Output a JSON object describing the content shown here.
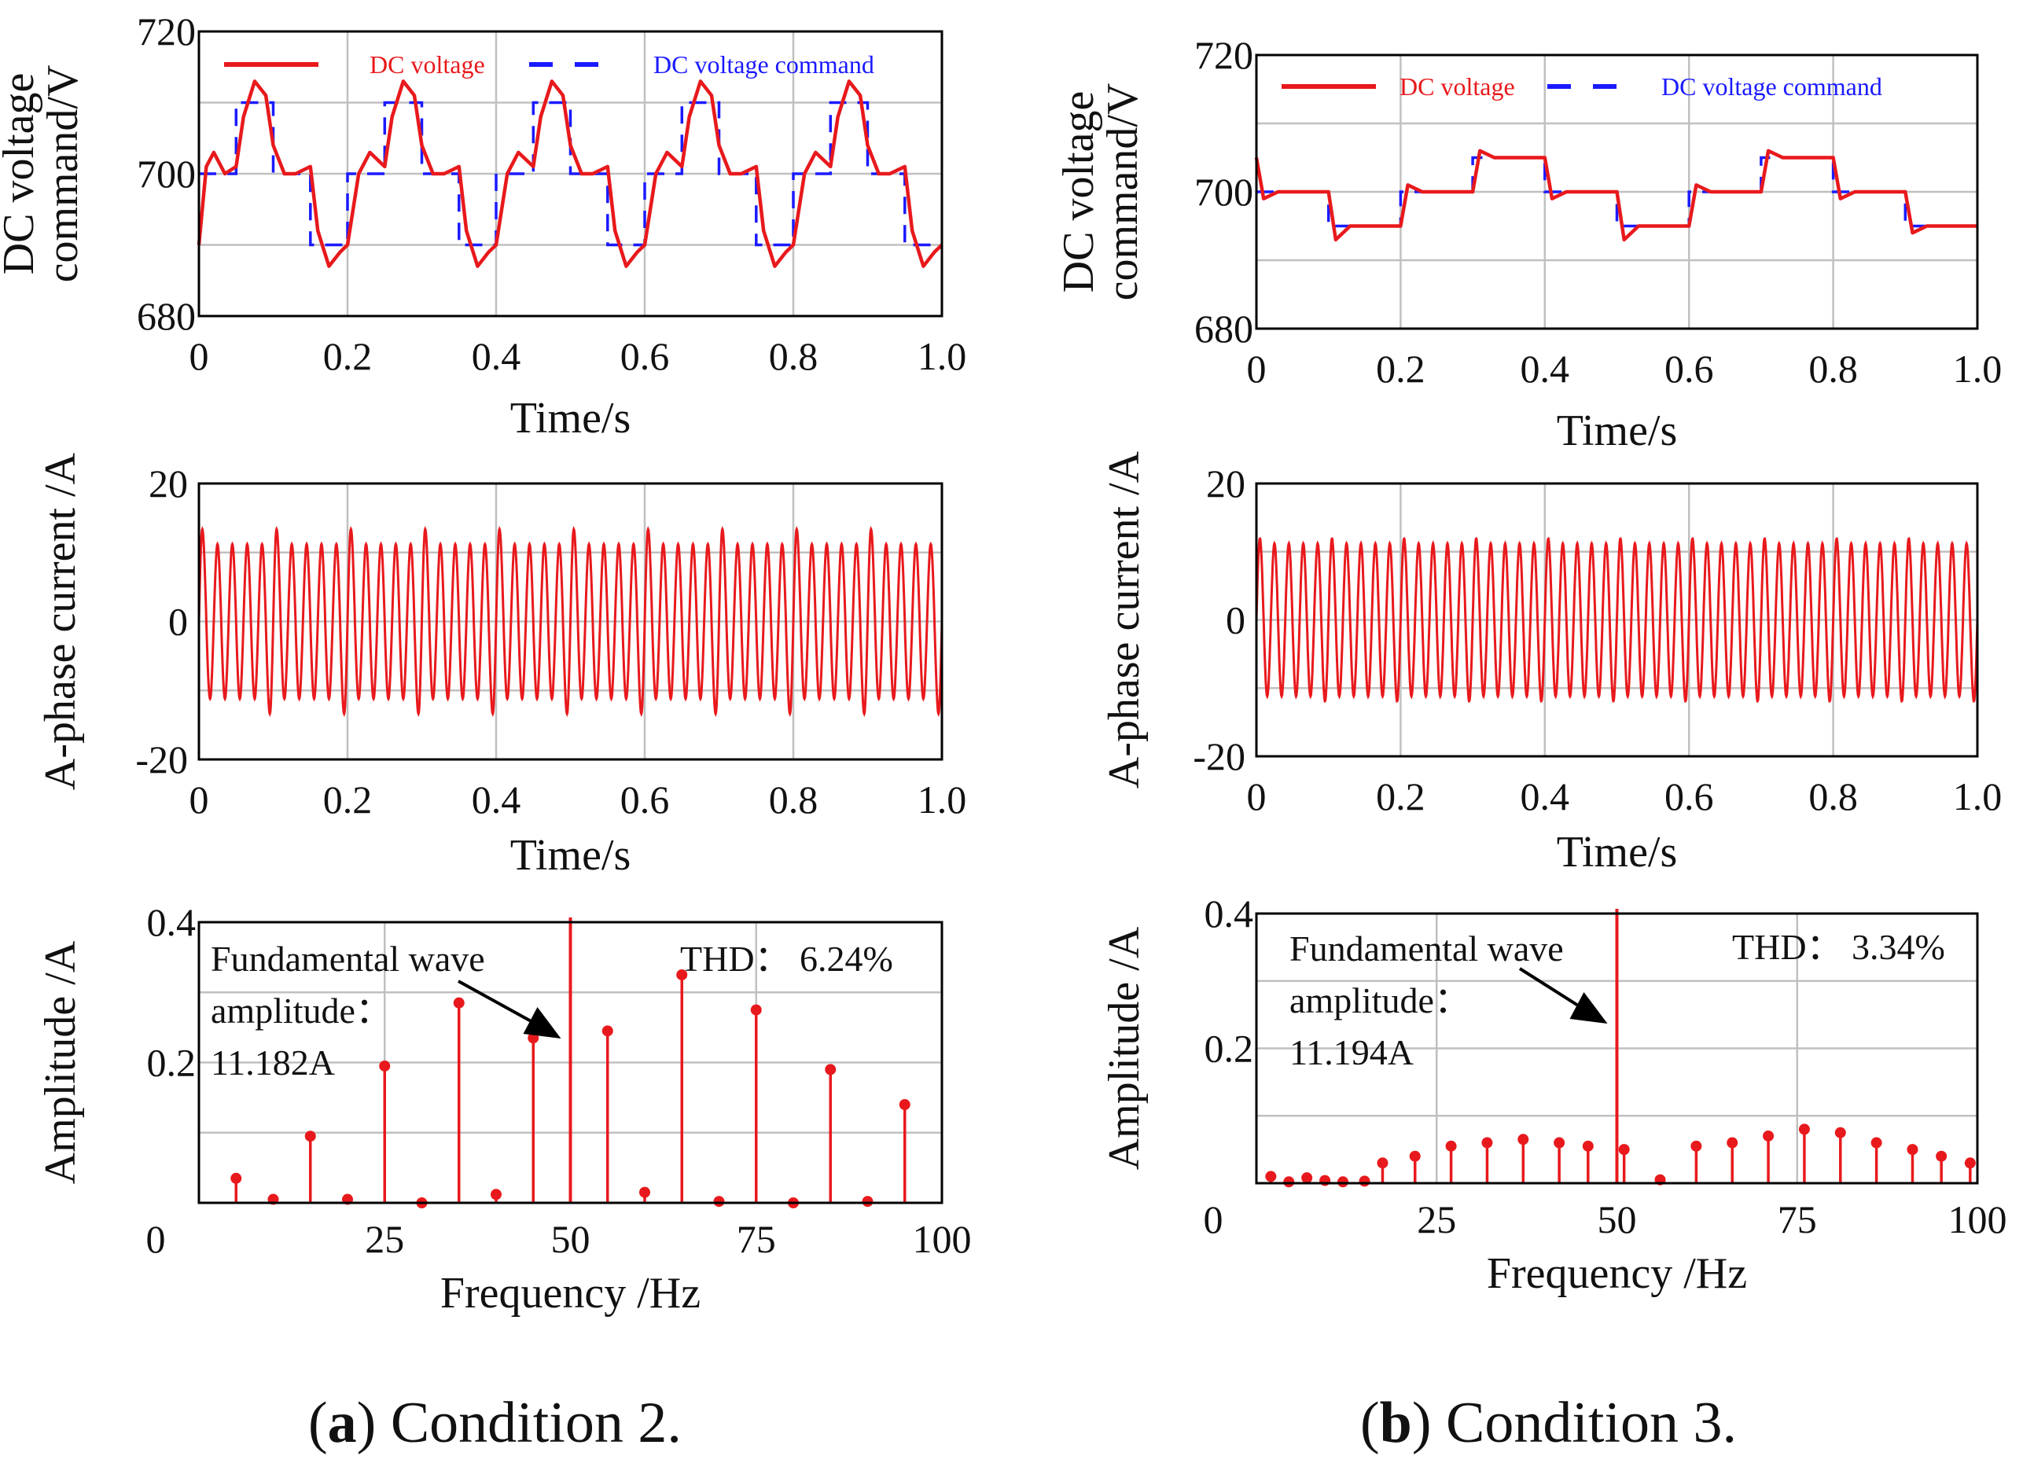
{
  "colors": {
    "measured": "#e8191c",
    "command": "#1a1aff",
    "grid": "#c0c0c0",
    "axis": "#000000",
    "text": "#111111"
  },
  "captions": [
    {
      "panel_letter": "a",
      "text": "Condition 2."
    },
    {
      "panel_letter": "b",
      "text": "Condition 3."
    }
  ],
  "chart_data": [
    {
      "id": "a-dc",
      "type": "line",
      "panel": "a",
      "ylabel_lines": [
        "DC voltage",
        "command/V"
      ],
      "xlabel": "Time/s",
      "xlim": [
        0,
        1.0
      ],
      "ylim": [
        680,
        720
      ],
      "xticks": [
        "0",
        "0.2",
        "0.4",
        "0.6",
        "0.8",
        "1.0"
      ],
      "yticks": [
        "680",
        "700",
        "720"
      ],
      "legend": [
        "DC voltage",
        "DC voltage command"
      ],
      "series": [
        {
          "name": "DC voltage command",
          "style": "dashed",
          "x": [
            0,
            0.05,
            0.05,
            0.1,
            0.1,
            0.15,
            0.15,
            0.2,
            0.2,
            0.25,
            0.25,
            0.3,
            0.3,
            0.35,
            0.35,
            0.4,
            0.4,
            0.45,
            0.45,
            0.5,
            0.5,
            0.55,
            0.55,
            0.6,
            0.6,
            0.65,
            0.65,
            0.7,
            0.7,
            0.75,
            0.75,
            0.8,
            0.8,
            0.85,
            0.85,
            0.9,
            0.9,
            0.95,
            0.95,
            1.0
          ],
          "y": [
            700,
            700,
            710,
            710,
            700,
            700,
            690,
            690,
            700,
            700,
            710,
            710,
            700,
            700,
            690,
            690,
            700,
            700,
            710,
            710,
            700,
            700,
            690,
            690,
            700,
            700,
            710,
            710,
            700,
            700,
            690,
            690,
            700,
            700,
            710,
            710,
            700,
            700,
            690,
            690
          ]
        },
        {
          "name": "DC voltage",
          "style": "solid",
          "x": [
            0,
            0.01,
            0.02,
            0.035,
            0.05,
            0.06,
            0.075,
            0.09,
            0.1,
            0.115,
            0.13,
            0.15,
            0.16,
            0.175,
            0.19,
            0.2,
            0.215,
            0.23,
            0.25,
            0.26,
            0.275,
            0.29,
            0.3,
            0.315,
            0.33,
            0.35,
            0.36,
            0.375,
            0.39,
            0.4,
            0.415,
            0.43,
            0.45,
            0.46,
            0.475,
            0.49,
            0.5,
            0.515,
            0.53,
            0.55,
            0.56,
            0.575,
            0.59,
            0.6,
            0.615,
            0.63,
            0.65,
            0.66,
            0.675,
            0.69,
            0.7,
            0.715,
            0.73,
            0.75,
            0.76,
            0.775,
            0.79,
            0.8,
            0.815,
            0.83,
            0.85,
            0.86,
            0.875,
            0.89,
            0.9,
            0.915,
            0.93,
            0.95,
            0.96,
            0.975,
            0.99,
            1.0
          ],
          "y": [
            690,
            701,
            703,
            700,
            701,
            708,
            713,
            711,
            704,
            700,
            700,
            701,
            692,
            687,
            689,
            690,
            700,
            703,
            701,
            708,
            713,
            711,
            704,
            700,
            700,
            701,
            692,
            687,
            689,
            690,
            700,
            703,
            701,
            708,
            713,
            711,
            704,
            700,
            700,
            701,
            692,
            687,
            689,
            690,
            700,
            703,
            701,
            708,
            713,
            711,
            704,
            700,
            700,
            701,
            692,
            687,
            689,
            690,
            700,
            703,
            701,
            708,
            713,
            711,
            704,
            700,
            700,
            701,
            692,
            687,
            689,
            690
          ]
        }
      ]
    },
    {
      "id": "a-current",
      "type": "line",
      "panel": "a",
      "ylabel_lines": [
        "A-phase current /A"
      ],
      "xlabel": "Time/s",
      "xlim": [
        0,
        1.0
      ],
      "ylim": [
        -20,
        20
      ],
      "xticks": [
        "0",
        "0.2",
        "0.4",
        "0.6",
        "0.8",
        "1.0"
      ],
      "yticks": [
        "-20",
        "0",
        "20"
      ],
      "signal": {
        "frequency_hz": 50,
        "amplitude": 11.2,
        "peak_max": 15,
        "peak_min": -15
      }
    },
    {
      "id": "a-spectrum",
      "type": "bar",
      "panel": "a",
      "ylabel_lines": [
        "Amplitude /A"
      ],
      "xlabel": "Frequency /Hz",
      "xlim": [
        0,
        100
      ],
      "ylim": [
        0,
        0.4
      ],
      "xticks": [
        "0",
        "25",
        "50",
        "75",
        "100"
      ],
      "yticks": [
        "0.2",
        "0.4"
      ],
      "fundamental": {
        "frequency": 50,
        "amplitude": 11.182
      },
      "x": [
        5,
        10,
        15,
        20,
        25,
        30,
        35,
        40,
        45,
        55,
        60,
        65,
        70,
        75,
        80,
        85,
        90,
        95
      ],
      "values": [
        0.035,
        0.005,
        0.095,
        0.005,
        0.195,
        0.0,
        0.285,
        0.012,
        0.235,
        0.245,
        0.015,
        0.325,
        0.002,
        0.275,
        0.0,
        0.19,
        0.002,
        0.14
      ],
      "annotations": {
        "fundamental_lines": [
          "Fundamental wave",
          "amplitude：",
          "11.182A"
        ],
        "thd": "THD：  6.24%"
      }
    },
    {
      "id": "b-dc",
      "type": "line",
      "panel": "b",
      "ylabel_lines": [
        "DC voltage",
        "command/V"
      ],
      "xlabel": "Time/s",
      "xlim": [
        0,
        1.0
      ],
      "ylim": [
        680,
        720
      ],
      "xticks": [
        "0",
        "0.2",
        "0.4",
        "0.6",
        "0.8",
        "1.0"
      ],
      "yticks": [
        "680",
        "700",
        "720"
      ],
      "legend": [
        "DC voltage",
        "DC voltage command"
      ],
      "series": [
        {
          "name": "DC voltage command",
          "style": "dashed",
          "x": [
            0,
            0.1,
            0.1,
            0.2,
            0.2,
            0.3,
            0.3,
            0.4,
            0.4,
            0.5,
            0.5,
            0.6,
            0.6,
            0.7,
            0.7,
            0.8,
            0.8,
            0.9,
            0.9,
            1.0
          ],
          "y": [
            700,
            700,
            695,
            695,
            700,
            700,
            705,
            705,
            700,
            700,
            695,
            695,
            700,
            700,
            705,
            705,
            700,
            700,
            695,
            695
          ]
        },
        {
          "name": "DC voltage",
          "style": "solid",
          "x": [
            0,
            0.01,
            0.03,
            0.1,
            0.11,
            0.13,
            0.2,
            0.21,
            0.23,
            0.3,
            0.31,
            0.33,
            0.4,
            0.41,
            0.43,
            0.5,
            0.51,
            0.53,
            0.6,
            0.61,
            0.63,
            0.7,
            0.71,
            0.73,
            0.8,
            0.81,
            0.83,
            0.9,
            0.91,
            0.93,
            1.0
          ],
          "y": [
            705,
            699,
            700,
            700,
            693,
            695,
            695,
            701,
            700,
            700,
            706,
            705,
            705,
            699,
            700,
            700,
            693,
            695,
            695,
            701,
            700,
            700,
            706,
            705,
            705,
            699,
            700,
            700,
            694,
            695,
            695
          ]
        }
      ]
    },
    {
      "id": "b-current",
      "type": "line",
      "panel": "b",
      "ylabel_lines": [
        "A-phase current /A"
      ],
      "xlabel": "Time/s",
      "xlim": [
        0,
        1.0
      ],
      "ylim": [
        -20,
        20
      ],
      "xticks": [
        "0",
        "0.2",
        "0.4",
        "0.6",
        "0.8",
        "1.0"
      ],
      "yticks": [
        "-20",
        "0",
        "20"
      ],
      "signal": {
        "frequency_hz": 50,
        "amplitude": 11.2,
        "peak_max": 12.5,
        "peak_min": -12.5
      }
    },
    {
      "id": "b-spectrum",
      "type": "bar",
      "panel": "b",
      "ylabel_lines": [
        "Amplitude /A"
      ],
      "xlabel": "Frequency /Hz",
      "xlim": [
        0,
        100
      ],
      "ylim": [
        0,
        0.4
      ],
      "xticks": [
        "0",
        "25",
        "50",
        "75",
        "100"
      ],
      "yticks": [
        "0.2",
        "0.4"
      ],
      "fundamental": {
        "frequency": 50,
        "amplitude": 11.194
      },
      "x": [
        2,
        4.5,
        7,
        9.5,
        12,
        15,
        17.5,
        22,
        27,
        32,
        37,
        42,
        46,
        51,
        56,
        61,
        66,
        71,
        76,
        81,
        86,
        91,
        95,
        99
      ],
      "values": [
        0.01,
        0.002,
        0.008,
        0.004,
        0.002,
        0.003,
        0.03,
        0.04,
        0.055,
        0.06,
        0.065,
        0.06,
        0.055,
        0.05,
        0.005,
        0.055,
        0.06,
        0.07,
        0.08,
        0.075,
        0.06,
        0.05,
        0.04,
        0.03
      ],
      "annotations": {
        "fundamental_lines": [
          "Fundamental wave",
          "amplitude：",
          "11.194A"
        ],
        "thd": "THD：  3.34%"
      }
    }
  ]
}
